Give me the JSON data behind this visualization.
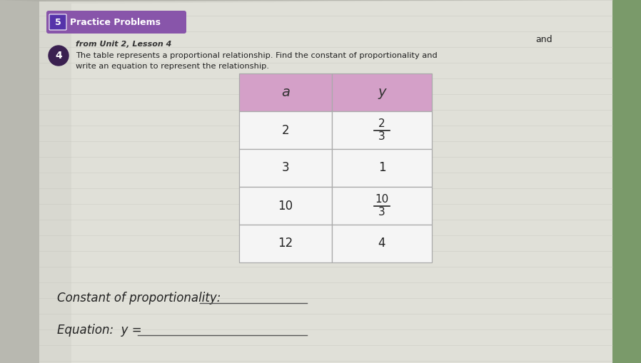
{
  "title_tab": "Practice Problems",
  "section_num": "5",
  "problem_num": "4",
  "from_label": "from Unit 2, Lesson 4",
  "problem_text_line1": "The table represents a proportional relationship. Find the constant of proportionality and",
  "problem_text_line2": "write an equation to represent the relationship.",
  "col_headers": [
    "a",
    "y"
  ],
  "row_data_a": [
    "2",
    "3",
    "10",
    "12"
  ],
  "row_data_y_nums": [
    "2",
    "",
    "10",
    ""
  ],
  "row_data_y_dens": [
    "3",
    "",
    "3",
    ""
  ],
  "row_data_y_plain": [
    "",
    "1",
    "",
    "4"
  ],
  "bottom_label1": "Constant of proportionality:",
  "bottom_label2": "Equation:  y =",
  "page_color_top": "#c8c8c0",
  "page_color_bottom": "#d5d5cc",
  "header_cell_color": "#d4a0c8",
  "table_cell_color": "#f5f5f5",
  "tab_color": "#8855aa",
  "table_border_color": "#aaaaaa",
  "green_strip_color": "#7a9a6a",
  "problem_circle_color": "#3a2050",
  "text_color": "#222222"
}
